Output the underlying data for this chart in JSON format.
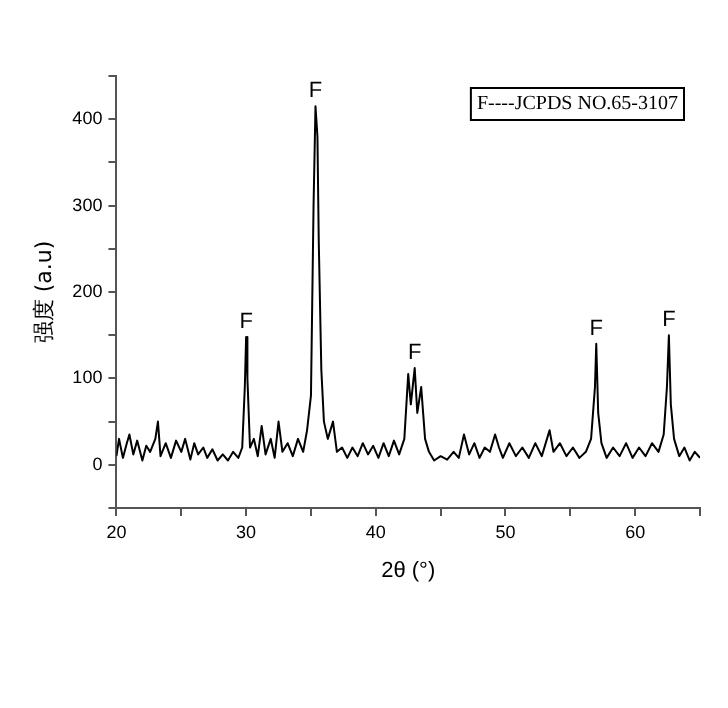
{
  "chart_data": {
    "type": "line",
    "xlabel": "2θ (°)",
    "ylabel": "强度 (a.u)",
    "x": [
      20,
      20.2,
      20.5,
      20.8,
      21,
      21.3,
      21.6,
      22,
      22.3,
      22.6,
      23,
      23.2,
      23.4,
      23.8,
      24.2,
      24.6,
      25,
      25.3,
      25.7,
      26,
      26.3,
      26.7,
      27,
      27.4,
      27.8,
      28.2,
      28.6,
      29,
      29.4,
      29.7,
      29.9,
      30,
      30.1,
      30.3,
      30.6,
      30.9,
      31.2,
      31.5,
      31.9,
      32.2,
      32.5,
      32.8,
      33.2,
      33.6,
      34,
      34.4,
      34.7,
      35,
      35.2,
      35.35,
      35.5,
      35.6,
      35.8,
      36,
      36.3,
      36.7,
      37,
      37.4,
      37.8,
      38.2,
      38.6,
      39,
      39.4,
      39.8,
      40.2,
      40.6,
      41,
      41.4,
      41.8,
      42.2,
      42.5,
      42.7,
      43,
      43.2,
      43.5,
      43.8,
      44.1,
      44.5,
      45,
      45.5,
      46,
      46.4,
      46.8,
      47.2,
      47.6,
      48,
      48.4,
      48.8,
      49.2,
      49.5,
      49.8,
      50.3,
      50.8,
      51.3,
      51.8,
      52.3,
      52.8,
      53.2,
      53.4,
      53.7,
      54.2,
      54.7,
      55.2,
      55.7,
      56.2,
      56.6,
      56.9,
      57,
      57.15,
      57.4,
      57.8,
      58.3,
      58.8,
      59.3,
      59.8,
      60.3,
      60.8,
      61.3,
      61.8,
      62.2,
      62.45,
      62.6,
      62.75,
      63,
      63.4,
      63.8,
      64.2,
      64.6,
      65
    ],
    "series": [
      {
        "color": "#000000",
        "values": [
          10,
          30,
          8,
          25,
          35,
          12,
          28,
          5,
          22,
          15,
          30,
          50,
          10,
          25,
          8,
          28,
          15,
          30,
          6,
          25,
          12,
          20,
          8,
          18,
          5,
          12,
          5,
          15,
          8,
          20,
          90,
          148,
          100,
          20,
          30,
          10,
          45,
          12,
          30,
          8,
          50,
          15,
          25,
          10,
          30,
          15,
          40,
          80,
          300,
          415,
          380,
          260,
          110,
          50,
          30,
          50,
          15,
          20,
          8,
          20,
          10,
          25,
          12,
          22,
          8,
          25,
          10,
          28,
          12,
          30,
          105,
          70,
          112,
          60,
          90,
          30,
          15,
          5,
          10,
          6,
          15,
          8,
          35,
          12,
          25,
          8,
          20,
          15,
          35,
          20,
          8,
          25,
          10,
          20,
          8,
          25,
          10,
          30,
          40,
          15,
          25,
          10,
          20,
          8,
          15,
          30,
          90,
          140,
          60,
          25,
          8,
          20,
          10,
          25,
          8,
          20,
          10,
          25,
          15,
          35,
          90,
          150,
          70,
          30,
          10,
          20,
          5,
          15,
          8
        ]
      }
    ],
    "xlim": [
      20,
      65
    ],
    "xticks": [
      20,
      {
        "value": 25,
        "label": null
      },
      30,
      {
        "value": 35,
        "label": null
      },
      40,
      {
        "value": 45,
        "label": null
      },
      50,
      {
        "value": 55,
        "label": null
      },
      60,
      {
        "value": 65,
        "label": null
      }
    ],
    "ylim": [
      -50,
      450
    ],
    "yticks": [
      {
        "value": -50,
        "label": null
      },
      0,
      {
        "value": 50,
        "label": null
      },
      100,
      {
        "value": 150,
        "label": null
      },
      200,
      {
        "value": 250,
        "label": null
      },
      300,
      {
        "value": 350,
        "label": null
      },
      400,
      {
        "value": 450,
        "label": null
      }
    ],
    "grid": false,
    "legend": false,
    "marker": "none",
    "line_style": "solid",
    "annotations": [
      {
        "text": "F",
        "x": 30,
        "y": 148
      },
      {
        "text": "F",
        "x": 35.35,
        "y": 415
      },
      {
        "text": "F",
        "x": 43,
        "y": 112
      },
      {
        "text": "F",
        "x": 57,
        "y": 140
      },
      {
        "text": "F",
        "x": 62.6,
        "y": 150
      },
      "F----JCPDS NO.65-3107"
    ]
  }
}
